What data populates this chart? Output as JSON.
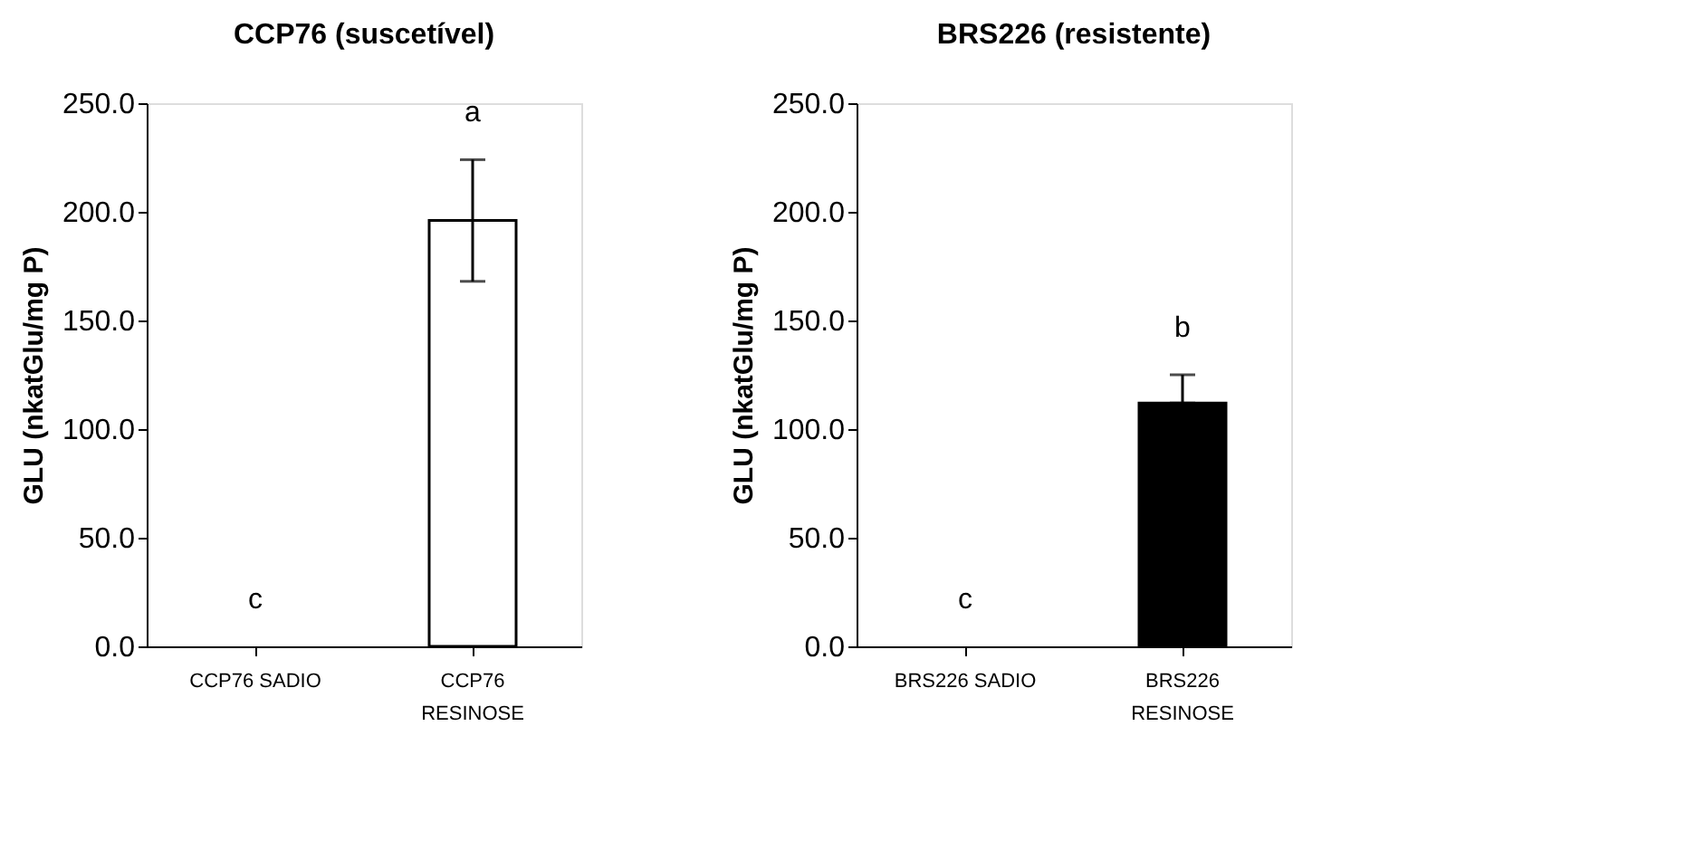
{
  "chart_data": [
    {
      "type": "bar",
      "title": "CCP76 (suscetível)",
      "ylabel": "GLU (nkatGlu/mg P)",
      "categories": [
        "CCP76 SADIO",
        "CCP76\nRESINOSE"
      ],
      "values": [
        0,
        196
      ],
      "errors": [
        null,
        28
      ],
      "colors": [
        "#ffffff",
        "#ffffff"
      ],
      "ylim": [
        0,
        250
      ],
      "yticks": [
        {
          "value": 0,
          "label": "0.0"
        },
        {
          "value": 50,
          "label": "50.0"
        },
        {
          "value": 100,
          "label": "100.0"
        },
        {
          "value": 150,
          "label": "150.0"
        },
        {
          "value": 200,
          "label": "200.0"
        },
        {
          "value": 250,
          "label": "250.0"
        }
      ],
      "annotations": [
        "c",
        "a"
      ],
      "grid": false
    },
    {
      "type": "bar",
      "title": "BRS226 (resistente)",
      "ylabel": "GLU (nkatGlu/mg P)",
      "categories": [
        "BRS226 SADIO",
        "BRS226\nRESINOSE"
      ],
      "values": [
        0,
        112
      ],
      "errors": [
        null,
        [
          112,
          125
        ]
      ],
      "colors": [
        "#000000",
        "#000000"
      ],
      "ylim": [
        0,
        250
      ],
      "yticks": [
        {
          "value": 0,
          "label": "0.0"
        },
        {
          "value": 50,
          "label": "50.0"
        },
        {
          "value": 100,
          "label": "100.0"
        },
        {
          "value": 150,
          "label": "150.0"
        },
        {
          "value": 200,
          "label": "200.0"
        },
        {
          "value": 250,
          "label": "250.0"
        }
      ],
      "annotations": [
        "c",
        "b"
      ],
      "grid": false
    }
  ]
}
